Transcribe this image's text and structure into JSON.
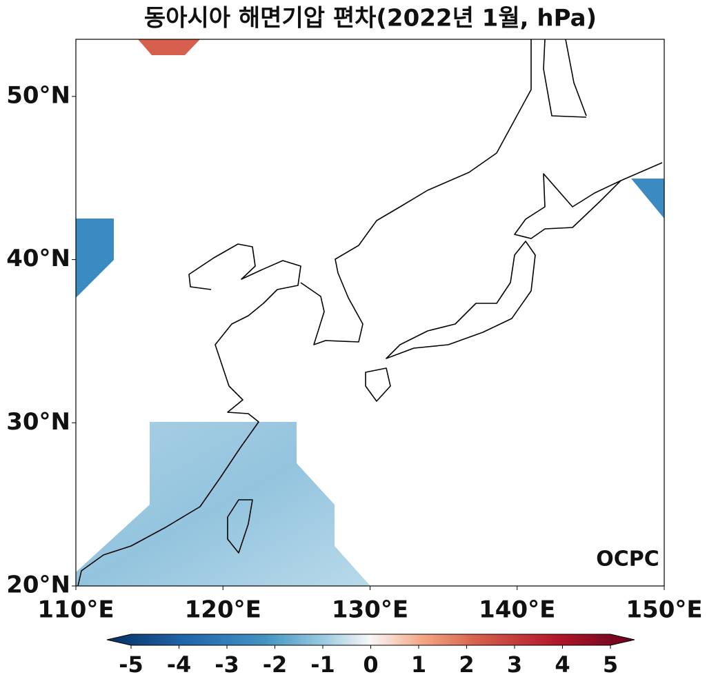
{
  "map": {
    "title": "동아시아 해면기압 편차(2022년 1월, hPa)",
    "xlim": [
      110,
      150
    ],
    "ylim": [
      20,
      53.5
    ],
    "xticks": [
      {
        "value": 110,
        "label": "110°E"
      },
      {
        "value": 120,
        "label": "120°E"
      },
      {
        "value": 130,
        "label": "130°E"
      },
      {
        "value": 140,
        "label": "140°E"
      },
      {
        "value": 150,
        "label": "150°E"
      }
    ],
    "yticks": [
      {
        "value": 20,
        "label": "20°N"
      },
      {
        "value": 30,
        "label": "30°N"
      },
      {
        "value": 40,
        "label": "40°N"
      },
      {
        "value": 50,
        "label": "50°N"
      }
    ],
    "colorbar": {
      "lim": [
        -5,
        5
      ],
      "ticks": [
        -5,
        -4,
        -3,
        -2,
        -1,
        0,
        1,
        2,
        3,
        4,
        5
      ]
    },
    "logo": "OCPC"
  }
}
